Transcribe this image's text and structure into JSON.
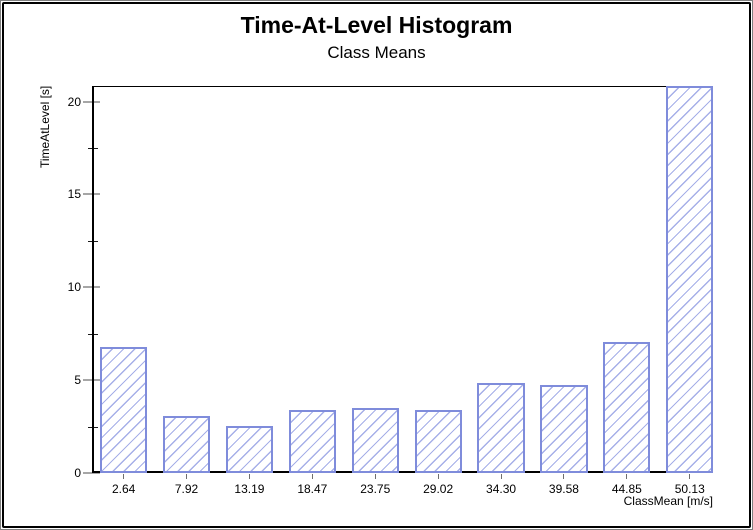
{
  "window": {
    "outer_border_color": "#7f7f7f",
    "inner_border_color": "#000000",
    "background": "#ffffff"
  },
  "chart_data": {
    "type": "bar",
    "title": "Time-At-Level Histogram",
    "subtitle": "Class Means",
    "xlabel": "ClassMean [m/s]",
    "ylabel": "TimeAtLevel [s]",
    "categories": [
      "2.64",
      "7.92",
      "13.19",
      "18.47",
      "23.75",
      "29.02",
      "34.30",
      "39.58",
      "44.85",
      "50.13"
    ],
    "values": [
      6.7,
      2.95,
      2.45,
      3.3,
      3.4,
      3.3,
      4.75,
      4.65,
      6.95,
      20.8
    ],
    "ylim": [
      0,
      20.84
    ],
    "yticks_major": [
      0,
      5,
      10,
      15,
      20
    ],
    "yticks_minor": [
      2.5,
      7.5,
      12.5,
      17.5
    ],
    "grid": false,
    "legend": false,
    "bar_style": {
      "outline_color": "#7f8cdb",
      "hatch_color": "#a6afe8",
      "fill_color": "#ffffff",
      "hatch_pattern": "diagonal-forward-slash"
    },
    "axis_style": {
      "axis_color": "#000000",
      "major_tick_color": "#a6a6a6",
      "minor_tick_color": "#1a1a1a",
      "x_tick_color": "#6e6e6e"
    }
  }
}
